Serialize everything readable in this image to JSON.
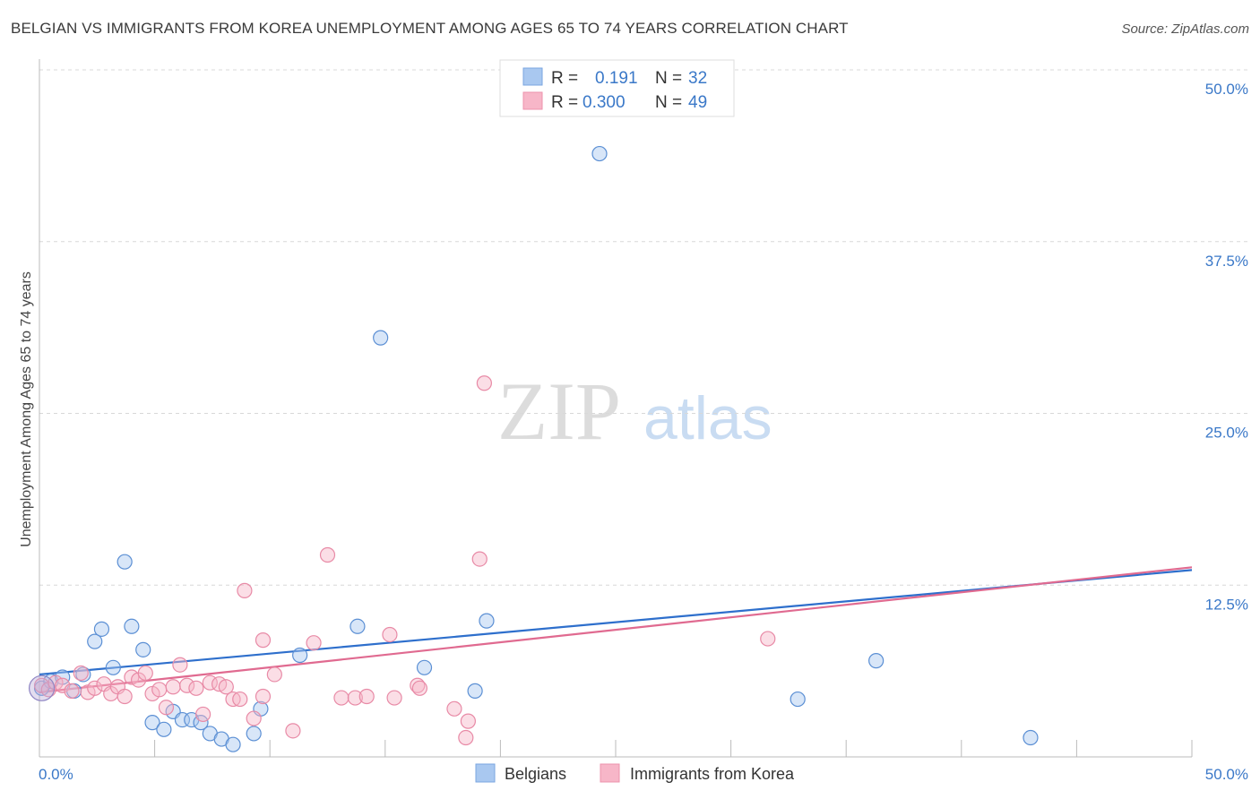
{
  "header": {
    "title": "BELGIAN VS IMMIGRANTS FROM KOREA UNEMPLOYMENT AMONG AGES 65 TO 74 YEARS CORRELATION CHART",
    "source": "Source: ZipAtlas.com"
  },
  "watermark": {
    "zip": "ZIP",
    "atlas": "atlas"
  },
  "legend": {
    "r_label": "R =",
    "n_label": "N =",
    "rows": [
      {
        "r": "0.191",
        "n": "32",
        "color": "#a9c8f0"
      },
      {
        "r": "0.300",
        "n": "49",
        "color": "#f7b6c8"
      }
    ]
  },
  "bottom_legend": [
    "Belgians",
    "Immigrants from Korea"
  ],
  "chart_data": {
    "type": "scatter",
    "title": "BELGIAN VS IMMIGRANTS FROM KOREA UNEMPLOYMENT AMONG AGES 65 TO 74 YEARS CORRELATION CHART",
    "xlabel": "",
    "ylabel": "Unemployment Among Ages 65 to 74 years",
    "xlim": [
      0,
      50
    ],
    "ylim": [
      0,
      50
    ],
    "x_tick_labels": [
      "0.0%",
      "50.0%"
    ],
    "y_ticks": [
      {
        "value": 50,
        "label": "50.0%"
      },
      {
        "value": 37.5,
        "label": "37.5%"
      },
      {
        "value": 25,
        "label": "25.0%"
      },
      {
        "value": 12.5,
        "label": "12.5%"
      }
    ],
    "series": [
      {
        "name": "Belgians",
        "color": "#5b8fd4",
        "fill": "#a9c8f0",
        "trend": {
          "x0": 0,
          "y0": 6.0,
          "x1": 50,
          "y1": 13.6,
          "color": "#2e6fcc"
        },
        "points": [
          {
            "x": 0.1,
            "y": 5.0
          },
          {
            "x": 0.5,
            "y": 5.5
          },
          {
            "x": 1.0,
            "y": 5.8
          },
          {
            "x": 1.5,
            "y": 4.8
          },
          {
            "x": 1.9,
            "y": 6.0
          },
          {
            "x": 2.4,
            "y": 8.4
          },
          {
            "x": 2.7,
            "y": 9.3
          },
          {
            "x": 3.2,
            "y": 6.5
          },
          {
            "x": 3.7,
            "y": 14.2
          },
          {
            "x": 4.0,
            "y": 9.5
          },
          {
            "x": 4.5,
            "y": 7.8
          },
          {
            "x": 4.9,
            "y": 2.5
          },
          {
            "x": 5.4,
            "y": 2.0
          },
          {
            "x": 5.8,
            "y": 3.3
          },
          {
            "x": 6.2,
            "y": 2.7
          },
          {
            "x": 6.6,
            "y": 2.7
          },
          {
            "x": 7.0,
            "y": 2.5
          },
          {
            "x": 7.4,
            "y": 1.7
          },
          {
            "x": 7.9,
            "y": 1.3
          },
          {
            "x": 8.4,
            "y": 0.9
          },
          {
            "x": 9.3,
            "y": 1.7
          },
          {
            "x": 9.6,
            "y": 3.5
          },
          {
            "x": 11.3,
            "y": 7.4
          },
          {
            "x": 13.8,
            "y": 9.5
          },
          {
            "x": 14.8,
            "y": 30.5
          },
          {
            "x": 16.7,
            "y": 6.5
          },
          {
            "x": 18.9,
            "y": 4.8
          },
          {
            "x": 19.4,
            "y": 9.9
          },
          {
            "x": 24.3,
            "y": 43.9
          },
          {
            "x": 32.9,
            "y": 4.2
          },
          {
            "x": 36.3,
            "y": 7.0
          },
          {
            "x": 43.0,
            "y": 1.4
          }
        ]
      },
      {
        "name": "Immigrants from Korea",
        "color": "#e88aa6",
        "fill": "#f7b6c8",
        "trend": {
          "x0": 0,
          "y0": 4.7,
          "x1": 50,
          "y1": 13.8,
          "color": "#e06a90"
        },
        "points": [
          {
            "x": 0.1,
            "y": 5.2
          },
          {
            "x": 0.4,
            "y": 4.9
          },
          {
            "x": 0.7,
            "y": 5.4
          },
          {
            "x": 1.0,
            "y": 5.2
          },
          {
            "x": 1.4,
            "y": 4.8
          },
          {
            "x": 1.8,
            "y": 6.1
          },
          {
            "x": 2.1,
            "y": 4.7
          },
          {
            "x": 2.4,
            "y": 5.0
          },
          {
            "x": 2.8,
            "y": 5.3
          },
          {
            "x": 3.1,
            "y": 4.6
          },
          {
            "x": 3.4,
            "y": 5.1
          },
          {
            "x": 3.7,
            "y": 4.4
          },
          {
            "x": 4.0,
            "y": 5.8
          },
          {
            "x": 4.3,
            "y": 5.6
          },
          {
            "x": 4.6,
            "y": 6.1
          },
          {
            "x": 4.9,
            "y": 4.6
          },
          {
            "x": 5.2,
            "y": 4.9
          },
          {
            "x": 5.5,
            "y": 3.6
          },
          {
            "x": 5.8,
            "y": 5.1
          },
          {
            "x": 6.1,
            "y": 6.7
          },
          {
            "x": 6.4,
            "y": 5.2
          },
          {
            "x": 6.8,
            "y": 5.0
          },
          {
            "x": 7.1,
            "y": 3.1
          },
          {
            "x": 7.4,
            "y": 5.4
          },
          {
            "x": 7.8,
            "y": 5.3
          },
          {
            "x": 8.1,
            "y": 5.1
          },
          {
            "x": 8.4,
            "y": 4.2
          },
          {
            "x": 8.7,
            "y": 4.2
          },
          {
            "x": 8.9,
            "y": 12.1
          },
          {
            "x": 9.3,
            "y": 2.8
          },
          {
            "x": 9.7,
            "y": 8.5
          },
          {
            "x": 9.7,
            "y": 4.4
          },
          {
            "x": 10.2,
            "y": 6.0
          },
          {
            "x": 11.0,
            "y": 1.9
          },
          {
            "x": 11.9,
            "y": 8.3
          },
          {
            "x": 12.5,
            "y": 14.7
          },
          {
            "x": 13.1,
            "y": 4.3
          },
          {
            "x": 13.7,
            "y": 4.3
          },
          {
            "x": 14.2,
            "y": 4.4
          },
          {
            "x": 15.2,
            "y": 8.9
          },
          {
            "x": 15.4,
            "y": 4.3
          },
          {
            "x": 16.4,
            "y": 5.2
          },
          {
            "x": 16.5,
            "y": 5.0
          },
          {
            "x": 18.0,
            "y": 3.5
          },
          {
            "x": 18.5,
            "y": 1.4
          },
          {
            "x": 18.6,
            "y": 2.6
          },
          {
            "x": 19.1,
            "y": 14.4
          },
          {
            "x": 19.3,
            "y": 27.2
          },
          {
            "x": 31.6,
            "y": 8.6
          }
        ]
      }
    ]
  }
}
